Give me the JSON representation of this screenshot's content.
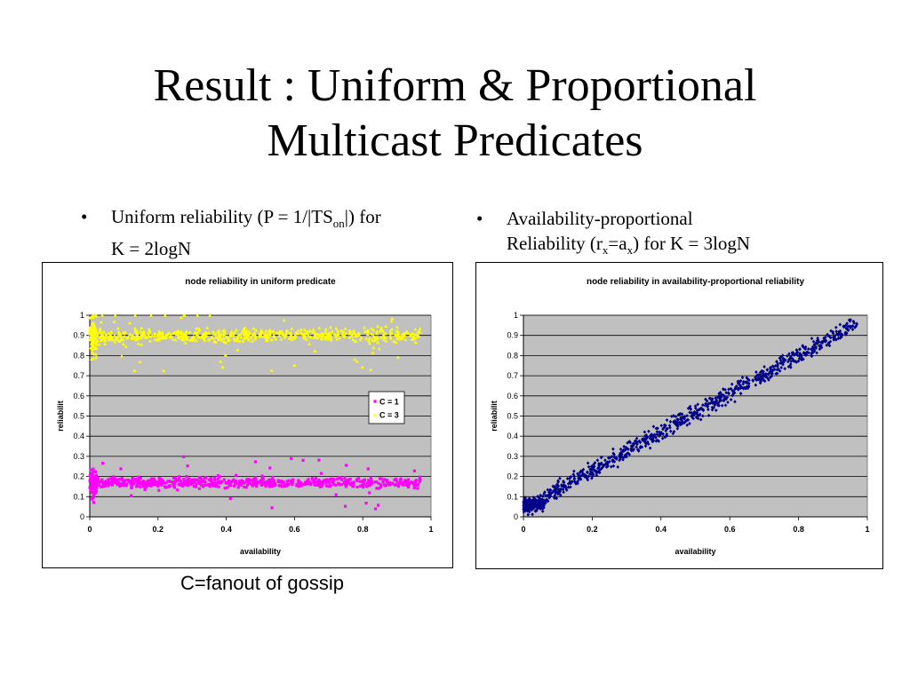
{
  "slide": {
    "title_line1": "Result : Uniform & Proportional",
    "title_line2": "Multicast Predicates",
    "bullet1": {
      "dot": "•",
      "pre": "Uniform reliability (P = 1/|TS",
      "sub": "on",
      "post": "|) for",
      "line2": "K = 2logN"
    },
    "bullet2": {
      "dot": "•",
      "line1": "Availability-proportional",
      "pre": "Reliability (r",
      "sub1": "x",
      "mid": "=a",
      "sub2": "x",
      "post": ") for K = 3logN"
    },
    "caption": "C=fanout of gossip"
  },
  "chart_data": [
    {
      "type": "scatter",
      "title": "node reliability in uniform predicate",
      "xlabel": "availability",
      "ylabel": "reliabilit",
      "xlim": [
        0,
        1
      ],
      "ylim": [
        0,
        1
      ],
      "xticks": [
        "0",
        "0.2",
        "0.4",
        "0.6",
        "0.8",
        "1"
      ],
      "yticks": [
        "0",
        "0.1",
        "0.2",
        "0.3",
        "0.4",
        "0.5",
        "0.6",
        "0.7",
        "0.8",
        "0.9",
        "1"
      ],
      "grid": true,
      "legend_position": "right",
      "plot_background": "#c0c0c0",
      "series": [
        {
          "name": "C = 1",
          "color": "#ff00ff",
          "marker": "square",
          "y_center": 0.17,
          "y_spread": 0.045,
          "x_range": [
            0,
            0.97
          ]
        },
        {
          "name": "C = 3",
          "color": "#ffff00",
          "marker": "triangle",
          "y_center": 0.9,
          "y_spread": 0.06,
          "x_range": [
            0,
            0.97
          ]
        }
      ]
    },
    {
      "type": "scatter",
      "title": "node reliability in availability-proportional reliability",
      "xlabel": "availability",
      "ylabel": "reliabilit",
      "xlim": [
        0,
        1
      ],
      "ylim": [
        0,
        1
      ],
      "xticks": [
        "0",
        "0.2",
        "0.4",
        "0.6",
        "0.8",
        "1"
      ],
      "yticks": [
        "0",
        "0.1",
        "0.2",
        "0.3",
        "0.4",
        "0.5",
        "0.6",
        "0.7",
        "0.8",
        "0.9",
        "1"
      ],
      "grid": true,
      "plot_background": "#c0c0c0",
      "series": [
        {
          "color": "#00008b",
          "marker": "diamond",
          "relation": "y ≈ x",
          "y_spread": 0.07,
          "x_range": [
            0,
            0.97
          ]
        }
      ]
    }
  ]
}
